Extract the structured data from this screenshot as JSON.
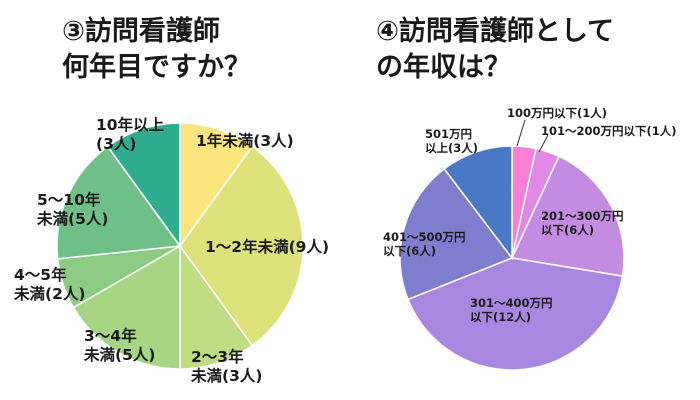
{
  "chart_data": [
    {
      "type": "pie",
      "title": "③訪問看護師\n何年目ですか？",
      "slices": [
        {
          "label": "1年未満(3人)",
          "value": 3,
          "color": "#FCE57D"
        },
        {
          "label": "1～2年未満(9人)",
          "value": 9,
          "color": "#DDE27A"
        },
        {
          "label": "2～3年\n未満(3人)",
          "value": 3,
          "color": "#C1DD84"
        },
        {
          "label": "3～4年\n未満(5人)",
          "value": 5,
          "color": "#A6D584"
        },
        {
          "label": "4～5年\n未満(2人)",
          "value": 2,
          "color": "#8CCB82"
        },
        {
          "label": "5～10年\n未満(5人)",
          "value": 5,
          "color": "#6FC088"
        },
        {
          "label": "10年以上\n(3人)",
          "value": 3,
          "color": "#2FAE8F"
        }
      ]
    },
    {
      "type": "pie",
      "title": "④訪問看護師として\nの年収は？",
      "slices": [
        {
          "label": "100万円以下(1人)",
          "value": 1,
          "color": "#F97ED6"
        },
        {
          "label": "101～200万円以下(1人)",
          "value": 1,
          "color": "#DE8AE4"
        },
        {
          "label": "201～300万円\n以下(6人)",
          "value": 6,
          "color": "#C38BE1"
        },
        {
          "label": "301～400万円\n以下(12人)",
          "value": 12,
          "color": "#A787DF"
        },
        {
          "label": "401～500万円\n以下(6人)",
          "value": 6,
          "color": "#7F7ECE"
        },
        {
          "label": "501万円\n以上(3人)",
          "value": 3,
          "color": "#4A78C5"
        }
      ]
    }
  ]
}
